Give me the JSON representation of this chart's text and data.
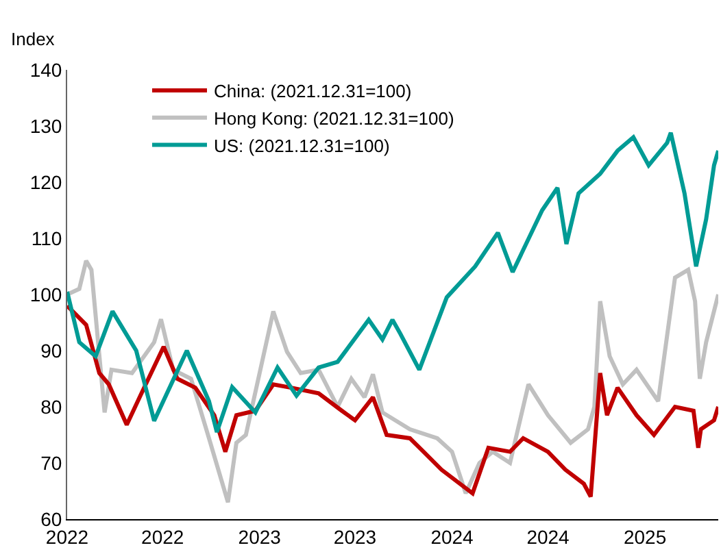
{
  "chart_data": {
    "type": "line",
    "ylabel": "Index",
    "xlim": [
      "2022-01-01",
      "2025-05-20"
    ],
    "ylim": [
      60,
      140
    ],
    "xticks": [
      {
        "value": "2022-01",
        "label": "2022"
      },
      {
        "value": "2022-07",
        "label": "2022"
      },
      {
        "value": "2023-01",
        "label": "2023"
      },
      {
        "value": "2023-07",
        "label": "2023"
      },
      {
        "value": "2024-01",
        "label": "2024"
      },
      {
        "value": "2024-07",
        "label": "2024"
      },
      {
        "value": "2025-01",
        "label": "2025"
      }
    ],
    "yticks": [
      60,
      70,
      80,
      90,
      100,
      110,
      120,
      130,
      140
    ],
    "grid": false,
    "legend": "top left",
    "marker": "none",
    "line_style": "solid",
    "series": [
      {
        "name": "China: (2021.12.31=100)",
        "color": "#c00000",
        "x": [
          "2022-01-01",
          "2022-02-06",
          "2022-03-03",
          "2022-03-21",
          "2022-04-24",
          "2022-05-20",
          "2022-07-03",
          "2022-07-29",
          "2022-09-01",
          "2022-10-07",
          "2022-10-28",
          "2022-11-18",
          "2022-12-24",
          "2023-01-27",
          "2023-03-02",
          "2023-04-23",
          "2023-06-06",
          "2023-07-01",
          "2023-08-04",
          "2023-08-30",
          "2023-10-13",
          "2023-11-08",
          "2023-12-12",
          "2024-02-09",
          "2024-03-10",
          "2024-04-20",
          "2024-05-15",
          "2024-07-01",
          "2024-08-03",
          "2024-09-07",
          "2024-09-20",
          "2024-10-08",
          "2024-10-21",
          "2024-11-10",
          "2024-12-16",
          "2025-01-18",
          "2025-02-27",
          "2025-04-03",
          "2025-04-12",
          "2025-04-17",
          "2025-05-12",
          "2025-05-20"
        ],
        "values": [
          98,
          94.6,
          86,
          84,
          76.8,
          82,
          90.7,
          85,
          83.4,
          78.5,
          72,
          78.5,
          79.3,
          84,
          83.4,
          82.4,
          79.3,
          77.6,
          81.7,
          75,
          74.4,
          72,
          68.8,
          64.6,
          72.7,
          72,
          74.4,
          72,
          68.8,
          66.3,
          64,
          86,
          78.5,
          83.4,
          78.5,
          75,
          80,
          79.3,
          72.7,
          76,
          77.6,
          80
        ]
      },
      {
        "name": "Hong Kong: (2021.12.31=100)",
        "color": "#c0c0c0",
        "x": [
          "2022-01-01",
          "2022-01-24",
          "2022-02-06",
          "2022-02-16",
          "2022-03-13",
          "2022-03-26",
          "2022-05-04",
          "2022-06-15",
          "2022-06-28",
          "2022-07-21",
          "2022-08-24",
          "2022-09-27",
          "2022-11-02",
          "2022-11-18",
          "2022-12-06",
          "2023-01-01",
          "2023-01-27",
          "2023-02-22",
          "2023-03-20",
          "2023-04-23",
          "2023-05-29",
          "2023-06-24",
          "2023-07-19",
          "2023-08-04",
          "2023-08-22",
          "2023-10-13",
          "2023-12-04",
          "2024-01-01",
          "2024-01-27",
          "2024-02-22",
          "2024-03-18",
          "2024-04-20",
          "2024-05-25",
          "2024-07-01",
          "2024-08-13",
          "2024-09-15",
          "2024-09-27",
          "2024-10-08",
          "2024-10-26",
          "2024-11-20",
          "2024-12-16",
          "2025-01-26",
          "2025-02-27",
          "2025-03-24",
          "2025-04-06",
          "2025-04-15",
          "2025-04-27",
          "2025-05-20"
        ],
        "values": [
          100,
          101,
          106,
          104.4,
          79,
          86.6,
          86,
          91.5,
          95.6,
          86.6,
          85,
          74.4,
          63,
          73.6,
          75,
          86,
          97,
          89.8,
          86,
          86.6,
          80,
          85,
          81.7,
          85.8,
          79,
          76,
          74.4,
          72,
          64.6,
          70,
          72,
          70,
          84,
          78.5,
          73.6,
          76,
          80,
          98.8,
          89,
          84,
          86.6,
          81,
          103,
          104.4,
          98.8,
          85,
          91.5,
          100
        ]
      },
      {
        "name": "US: (2021.12.31=100)",
        "color": "#009b95",
        "x": [
          "2022-01-01",
          "2022-01-24",
          "2022-02-24",
          "2022-03-28",
          "2022-05-12",
          "2022-06-15",
          "2022-08-16",
          "2022-09-27",
          "2022-10-12",
          "2022-11-10",
          "2022-12-24",
          "2023-02-04",
          "2023-03-12",
          "2023-04-23",
          "2023-05-29",
          "2023-07-27",
          "2023-08-22",
          "2023-09-10",
          "2023-09-25",
          "2023-10-31",
          "2023-12-22",
          "2024-02-14",
          "2024-03-28",
          "2024-04-25",
          "2024-06-20",
          "2024-07-19",
          "2024-08-05",
          "2024-08-28",
          "2024-10-08",
          "2024-11-10",
          "2024-12-10",
          "2025-01-08",
          "2025-02-12",
          "2025-02-19",
          "2025-03-17",
          "2025-04-08",
          "2025-04-27",
          "2025-05-12",
          "2025-05-20"
        ],
        "values": [
          100.5,
          91.5,
          89,
          97,
          90,
          77.5,
          90,
          81,
          75.5,
          83.5,
          79,
          87,
          82,
          87,
          88,
          95.5,
          92,
          95.5,
          93,
          86.6,
          99.5,
          105,
          111,
          104,
          115,
          119,
          109,
          118,
          121.5,
          125.6,
          128,
          123,
          127,
          128.8,
          118,
          105,
          113.4,
          123,
          125.6
        ]
      }
    ]
  }
}
